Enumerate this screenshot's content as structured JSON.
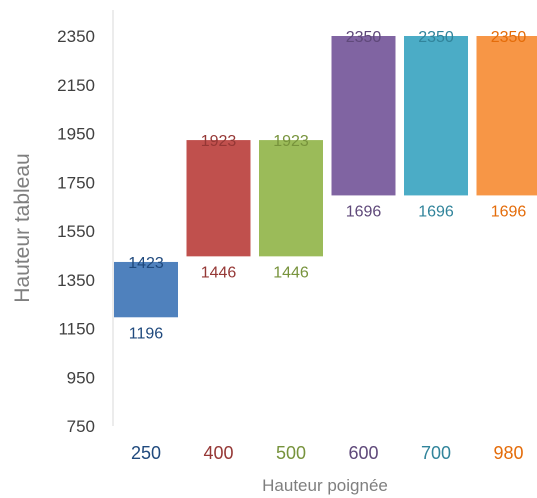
{
  "chart_data": {
    "type": "bar",
    "subtype": "floating-range",
    "categories": [
      "250",
      "400",
      "500",
      "600",
      "700",
      "980"
    ],
    "series": [
      {
        "low": 1196,
        "high": 1423,
        "color": "#4f81bd",
        "label_color": "#1f497d"
      },
      {
        "low": 1446,
        "high": 1923,
        "color": "#c0504d",
        "label_color": "#953735"
      },
      {
        "low": 1446,
        "high": 1923,
        "color": "#9bbb59",
        "label_color": "#77933c"
      },
      {
        "low": 1696,
        "high": 2350,
        "color": "#8064a2",
        "label_color": "#5f497a"
      },
      {
        "low": 1696,
        "high": 2350,
        "color": "#4bacc6",
        "label_color": "#31849b"
      },
      {
        "low": 1696,
        "high": 2350,
        "color": "#f79646",
        "label_color": "#e46c0a"
      }
    ],
    "yticks": [
      750,
      950,
      1150,
      1350,
      1550,
      1750,
      1950,
      2150,
      2350
    ],
    "ylim": [
      750,
      2450
    ],
    "xlabel": "Hauteur poignée",
    "ylabel": "Hauteur tableau",
    "grid": false
  }
}
